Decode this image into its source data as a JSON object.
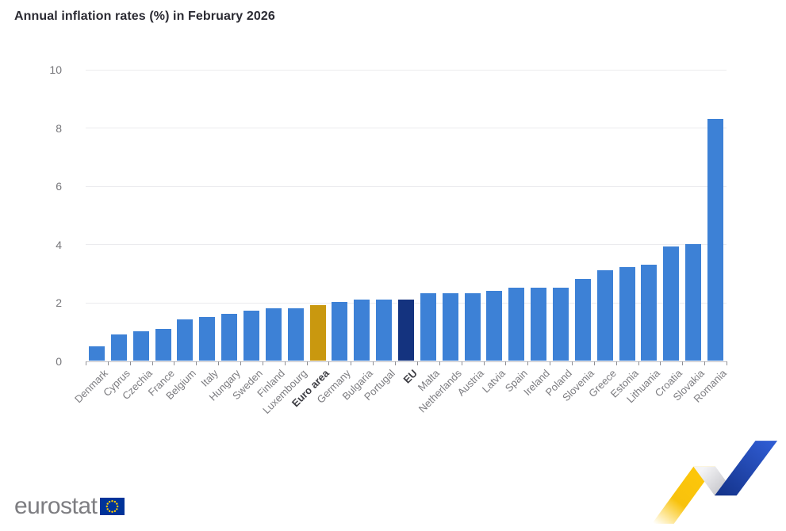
{
  "title": "Annual inflation rates (%) in February 2026",
  "chart_data": {
    "type": "bar",
    "title": "Annual inflation rates (%) in February 2026",
    "xlabel": "",
    "ylabel": "",
    "categories": [
      "Denmark",
      "Cyprus",
      "Czechia",
      "France",
      "Belgium",
      "Italy",
      "Hungary",
      "Sweden",
      "Finland",
      "Luxembourg",
      "Euro area",
      "Germany",
      "Bulgaria",
      "Portugal",
      "EU",
      "Malta",
      "Netherlands",
      "Austria",
      "Latvia",
      "Spain",
      "Ireland",
      "Poland",
      "Slovenia",
      "Greece",
      "Estonia",
      "Lithuania",
      "Croatia",
      "Slovakia",
      "Romania"
    ],
    "values": [
      0.5,
      0.9,
      1.0,
      1.1,
      1.4,
      1.5,
      1.6,
      1.7,
      1.8,
      1.8,
      1.9,
      2.0,
      2.1,
      2.1,
      2.1,
      2.3,
      2.3,
      2.3,
      2.4,
      2.5,
      2.5,
      2.5,
      2.8,
      3.1,
      3.2,
      3.3,
      3.9,
      4.0,
      8.3
    ],
    "ylim": [
      0,
      10
    ],
    "yticks": [
      0,
      2,
      4,
      6,
      8,
      10
    ],
    "grid": true,
    "legend": "none",
    "bar_color_default": "#3d81d6",
    "highlight": {
      "Euro area": "#c9980f",
      "EU": "#14337f"
    },
    "bold_labels": [
      "Euro area",
      "EU"
    ]
  },
  "footer": {
    "brand": "eurostat"
  },
  "colors": {
    "bar_default": "#3d81d6",
    "bar_euro_area": "#c9980f",
    "bar_eu": "#14337f",
    "title_text": "#2b2b33",
    "axis_label_text": "#76767a",
    "gridline": "#ebebee",
    "eu_flag_blue": "#003399",
    "eu_flag_star_yellow": "#ffcc00",
    "ribbon_yellow": "#fdc70a",
    "ribbon_blue": "#2f5bd1",
    "ribbon_gray": "#c3c3c8"
  }
}
